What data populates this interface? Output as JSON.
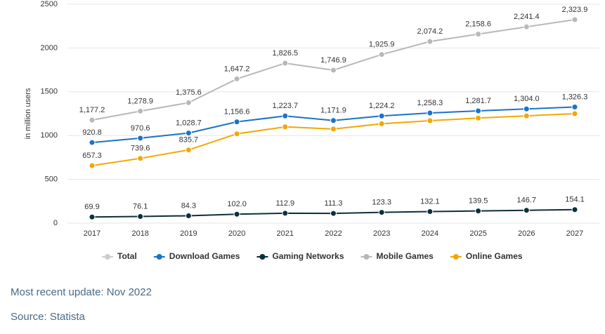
{
  "chart_data": {
    "type": "line",
    "y_label": "in million users",
    "categories": [
      "2017",
      "2018",
      "2019",
      "2020",
      "2021",
      "2022",
      "2023",
      "2024",
      "2025",
      "2026",
      "2027"
    ],
    "ylim": [
      0,
      2500
    ],
    "yticks": [
      0,
      500,
      1000,
      1500,
      2000,
      2500
    ],
    "grid": true,
    "series": [
      {
        "name": "Total",
        "color": "#cccccc",
        "hidden": true
      },
      {
        "name": "Download Games",
        "color": "#1b73c9",
        "values": [
          920.8,
          970.6,
          1028.7,
          1156.6,
          1223.7,
          1171.9,
          1224.2,
          1258.3,
          1281.7,
          1304.0,
          1326.3
        ],
        "value_labels": [
          "920.8",
          "970.6",
          "1,028.7",
          "1,156.6",
          "1,223.7",
          "1,171.9",
          "1,224.2",
          "1,258.3",
          "1,281.7",
          "1,304.0",
          "1,326.3"
        ]
      },
      {
        "name": "Gaming Networks",
        "color": "#0c2f3c",
        "values": [
          69.9,
          76.1,
          84.3,
          102.0,
          112.9,
          111.3,
          123.3,
          132.1,
          139.5,
          146.7,
          154.1
        ],
        "value_labels": [
          "69.9",
          "76.1",
          "84.3",
          "102.0",
          "112.9",
          "111.3",
          "123.3",
          "132.1",
          "139.5",
          "146.7",
          "154.1"
        ]
      },
      {
        "name": "Mobile Games",
        "color": "#b8b8b8",
        "values": [
          1177.2,
          1278.9,
          1375.6,
          1647.2,
          1826.5,
          1746.9,
          1925.9,
          2074.2,
          2158.6,
          2241.4,
          2323.9
        ],
        "value_labels": [
          "1,177.2",
          "1,278.9",
          "1,375.6",
          "1,647.2",
          "1,826.5",
          "1,746.9",
          "1,925.9",
          "2,074.2",
          "2,158.6",
          "2,241.4",
          "2,323.9"
        ]
      },
      {
        "name": "Online Games",
        "color": "#f4a700",
        "values": [
          657.3,
          739.6,
          835.7,
          1020,
          1100,
          1075,
          1135,
          1170,
          1200,
          1225,
          1250
        ],
        "value_labels": [
          "657.3",
          "739.6",
          "835.7",
          null,
          null,
          null,
          null,
          null,
          null,
          null,
          null
        ]
      }
    ]
  },
  "footer": {
    "update": "Most recent update: Nov 2022",
    "source": "Source: Statista"
  }
}
